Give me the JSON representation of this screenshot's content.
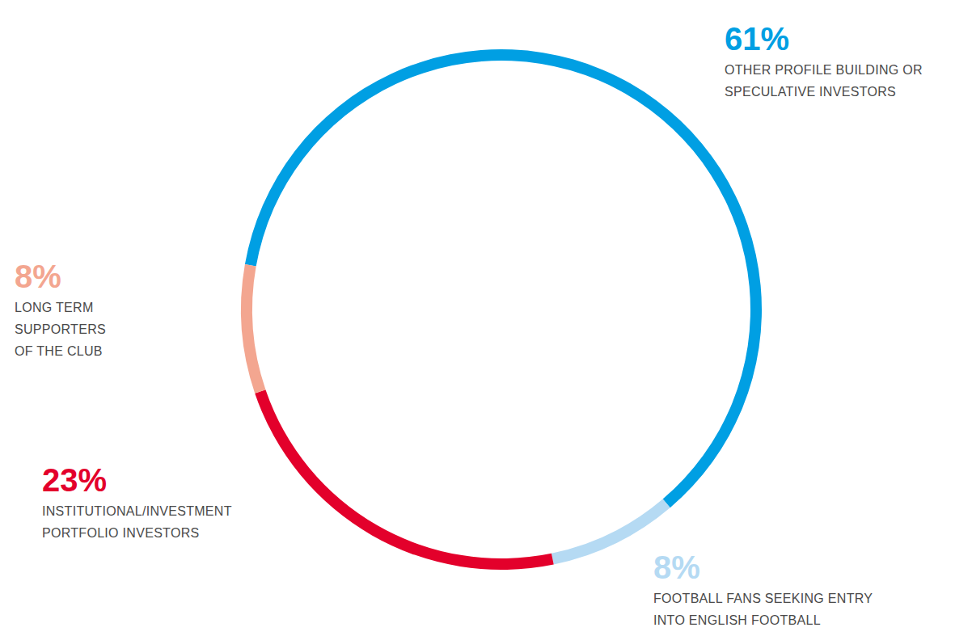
{
  "chart_data": {
    "type": "donut",
    "categories": [
      "OTHER PROFILE BUILDING OR SPECULATIVE INVESTORS",
      "FOOTBALL FANS SEEKING ENTRY INTO ENGLISH FOOTBALL",
      "INSTITUTIONAL/INVESTMENT PORTFOLIO INVESTORS",
      "LONG TERM SUPPORTERS OF THE CLUB"
    ],
    "values": [
      61,
      8,
      23,
      8
    ],
    "value_labels": [
      "61%",
      "8%",
      "23%",
      "8%"
    ],
    "colors": [
      "#009fe3",
      "#b5daf3",
      "#e3002b",
      "#f3a690"
    ],
    "data_labels": true
  }
}
